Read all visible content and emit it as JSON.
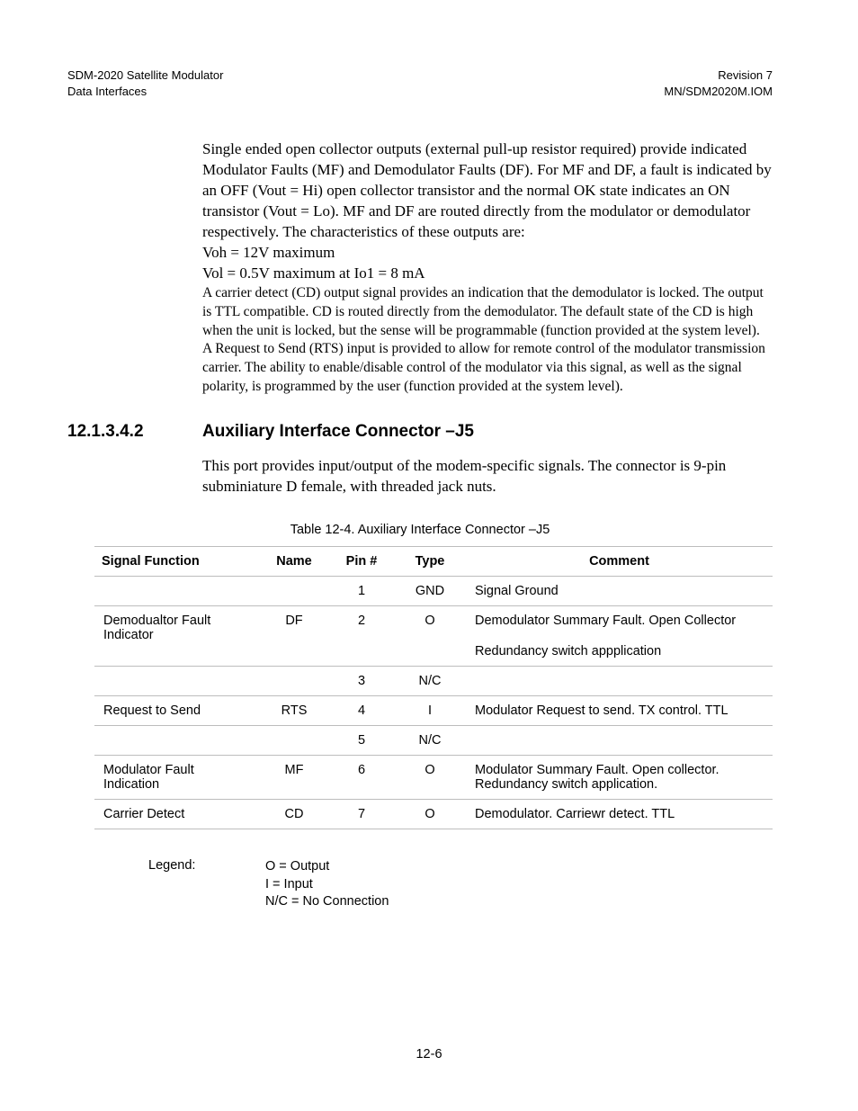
{
  "header": {
    "left_line1": "SDM-2020 Satellite Modulator",
    "left_line2": "Data Interfaces",
    "right_line1": "Revision 7",
    "right_line2": "MN/SDM2020M.IOM"
  },
  "paragraphs": {
    "p1": "Single ended open collector outputs (external pull-up resistor required) provide indicated Modulator Faults (MF) and Demodulator Faults (DF). For MF and DF, a fault is indicated by an OFF (Vout = Hi) open collector transistor and the normal OK state indicates an ON transistor (Vout = Lo). MF and DF are routed directly from the modulator or demodulator respectively. The characteristics of these outputs are:",
    "voh": "Voh = 12V maximum",
    "vol": "Vol = 0.5V maximum at Io1 = 8 mA",
    "cd": "A carrier detect (CD) output signal provides an indication that the demodulator is locked. The output is TTL compatible. CD is routed directly from the demodulator. The default state of the CD is high when the unit is locked, but the sense will be programmable (function provided at the system level).",
    "rts": "A Request to Send (RTS) input is provided to allow for remote control of the modulator transmission carrier. The ability to enable/disable control of the modulator via this signal, as well as the signal polarity, is programmed by the user (function provided at the system level)."
  },
  "section": {
    "number": "12.1.3.4.2",
    "title": "Auxiliary Interface Connector –J5",
    "intro": "This port provides input/output of the modem-specific signals. The connector is 9-pin subminiature D female, with threaded jack nuts."
  },
  "table": {
    "caption": "Table 12-4. Auxiliary Interface Connector –J5",
    "columns": [
      "Signal Function",
      "Name",
      "Pin #",
      "Type",
      "Comment"
    ],
    "rows": [
      {
        "sig": "",
        "name": "",
        "pin": "1",
        "type": "GND",
        "comment": "Signal Ground",
        "extra": ""
      },
      {
        "sig": "Demodualtor Fault Indicator",
        "name": "DF",
        "pin": "2",
        "type": "O",
        "comment": "Demodulator Summary Fault. Open Collector",
        "extra": "Redundancy switch appplication"
      },
      {
        "sig": "",
        "name": "",
        "pin": "3",
        "type": "N/C",
        "comment": "",
        "extra": ""
      },
      {
        "sig": "Request to Send",
        "name": "RTS",
        "pin": "4",
        "type": "I",
        "comment": "Modulator Request to send. TX control. TTL",
        "extra": ""
      },
      {
        "sig": "",
        "name": "",
        "pin": "5",
        "type": "N/C",
        "comment": "",
        "extra": ""
      },
      {
        "sig": "Modulator Fault Indication",
        "name": "MF",
        "pin": "6",
        "type": "O",
        "comment": "Modulator Summary Fault. Open collector. Redundancy switch application.",
        "extra": ""
      },
      {
        "sig": "Carrier Detect",
        "name": "CD",
        "pin": "7",
        "type": "O",
        "comment": "Demodulator. Carriewr detect. TTL",
        "extra": ""
      }
    ]
  },
  "legend": {
    "label": "Legend:",
    "o": "O = Output",
    "i": "I = Input",
    "nc": "N/C = No Connection"
  },
  "footer": {
    "page": "12-6"
  }
}
